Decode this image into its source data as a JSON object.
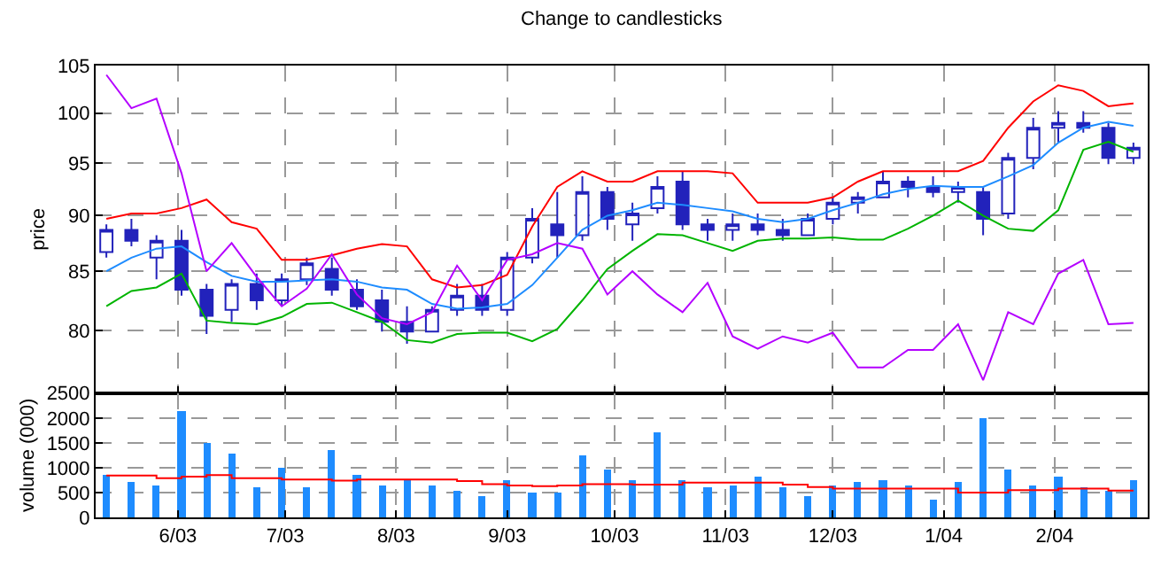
{
  "chart_data": [
    {
      "type": "candlestick",
      "title": "Change to candlesticks",
      "ylabel": "price",
      "color": "#2222bb",
      "x": [
        "2003-05-12",
        "2003-05-19",
        "2003-05-26",
        "2003-06-02",
        "2003-06-09",
        "2003-06-16",
        "2003-06-23",
        "2003-06-30",
        "2003-07-07",
        "2003-07-14",
        "2003-07-21",
        "2003-07-28",
        "2003-08-04",
        "2003-08-11",
        "2003-08-18",
        "2003-08-25",
        "2003-09-01",
        "2003-09-08",
        "2003-09-15",
        "2003-09-22",
        "2003-09-29",
        "2003-10-06",
        "2003-10-13",
        "2003-10-20",
        "2003-10-27",
        "2003-11-03",
        "2003-11-10",
        "2003-11-17",
        "2003-11-24",
        "2003-12-01",
        "2003-12-08",
        "2003-12-15",
        "2003-12-22",
        "2003-12-29",
        "2004-01-05",
        "2004-01-12",
        "2004-01-19",
        "2004-01-26",
        "2004-02-02",
        "2004-02-09",
        "2004-02-16",
        "2004-02-23"
      ],
      "ohlc": [
        [
          86.7,
          89.2,
          86.2,
          88.7
        ],
        [
          88.7,
          89.7,
          87.2,
          87.7
        ],
        [
          86.2,
          88.2,
          84.3,
          87.7
        ],
        [
          87.7,
          88.7,
          82.9,
          83.4
        ],
        [
          83.4,
          83.9,
          79.7,
          81.2
        ],
        [
          81.7,
          84.3,
          80.7,
          83.9
        ],
        [
          83.9,
          84.8,
          81.7,
          82.5
        ],
        [
          82.5,
          84.8,
          82,
          84.3
        ],
        [
          84.3,
          86.2,
          83.8,
          85.7
        ],
        [
          85.2,
          86.2,
          82.9,
          83.4
        ],
        [
          83.4,
          84.3,
          81.7,
          82
        ],
        [
          82.5,
          83.4,
          79.9,
          80.7
        ],
        [
          80.7,
          82,
          78.9,
          79.9
        ],
        [
          79.9,
          82,
          79.9,
          81.7
        ],
        [
          81.7,
          83.9,
          81.2,
          82.9
        ],
        [
          82.9,
          83.9,
          81.2,
          81.7
        ],
        [
          81.7,
          86.7,
          81.2,
          86.2
        ],
        [
          86.2,
          90.7,
          85.7,
          89.7
        ],
        [
          89.2,
          92.2,
          86.2,
          88.2
        ],
        [
          88.2,
          93.7,
          87.7,
          92.2
        ],
        [
          92.2,
          92.7,
          88.7,
          89.7
        ],
        [
          89.2,
          91.2,
          87.7,
          90.2
        ],
        [
          90.7,
          93.7,
          90.2,
          92.7
        ],
        [
          93.2,
          94.2,
          88.7,
          89.2
        ],
        [
          89.2,
          89.7,
          87.7,
          88.7
        ],
        [
          88.7,
          90.2,
          87.7,
          89.2
        ],
        [
          89.2,
          90.2,
          88.2,
          88.7
        ],
        [
          88.7,
          89.7,
          87.7,
          88.2
        ],
        [
          88.2,
          90.2,
          88.2,
          89.7
        ],
        [
          89.7,
          91.7,
          89.2,
          91.2
        ],
        [
          91.2,
          92.2,
          90.2,
          91.7
        ],
        [
          91.7,
          94.2,
          91.7,
          93.2
        ],
        [
          93.2,
          93.7,
          91.7,
          92.7
        ],
        [
          92.7,
          93.7,
          91.7,
          92.2
        ],
        [
          92.2,
          93.2,
          91.2,
          92.7
        ],
        [
          92.2,
          92.7,
          88.2,
          89.7
        ],
        [
          90.2,
          96,
          89.7,
          95.5
        ],
        [
          95.5,
          99.5,
          94.4,
          98.5
        ],
        [
          98.5,
          100.2,
          97,
          99
        ],
        [
          99,
          100.2,
          98,
          98.5
        ],
        [
          98.5,
          99,
          94.9,
          95.5
        ],
        [
          95.5,
          97,
          94.9,
          96.5
        ]
      ],
      "series": [
        {
          "type": "line",
          "color": "#ff0000",
          "values": [
            89.7,
            90.2,
            90.2,
            90.7,
            91.5,
            89.4,
            88.8,
            86,
            86,
            86.4,
            87,
            87.4,
            87.2,
            84.3,
            83.6,
            83.8,
            84.7,
            89,
            92.7,
            94.2,
            93.2,
            93.2,
            94.2,
            94.2,
            94.2,
            94,
            91.2,
            91.2,
            91.2,
            91.7,
            93.2,
            94.2,
            94.2,
            94.2,
            94.2,
            95.2,
            98.5,
            101.2,
            102.9,
            102.3,
            100.7,
            101
          ]
        },
        {
          "type": "line",
          "color": "#1e8cff",
          "values": [
            85,
            86.2,
            87,
            87.2,
            85.8,
            84.6,
            84.1,
            84.1,
            84.2,
            84.3,
            84.1,
            83.6,
            83.4,
            82.2,
            81.8,
            81.9,
            82.2,
            83.8,
            86.2,
            88.7,
            90,
            90.5,
            91.2,
            91,
            90.7,
            90.4,
            89.7,
            89.4,
            89.7,
            90.5,
            91.2,
            92,
            92.5,
            92.8,
            92.7,
            92.7,
            93.7,
            94.8,
            97,
            98.5,
            99.1,
            98.7
          ]
        },
        {
          "type": "line",
          "color": "#00b400",
          "values": [
            82,
            83.3,
            83.6,
            84.8,
            80.8,
            80.6,
            80.5,
            81.1,
            82.2,
            82.3,
            81.5,
            80.7,
            79.2,
            79,
            79.7,
            79.8,
            79.8,
            79.1,
            80.1,
            82.5,
            85.2,
            86.8,
            88.3,
            88.2,
            87.5,
            86.8,
            87.7,
            87.9,
            87.9,
            88,
            87.8,
            87.8,
            88.8,
            90,
            91.4,
            90,
            88.8,
            88.6,
            90.5,
            96.3,
            97.1,
            96.1
          ]
        },
        {
          "type": "line",
          "color": "#b400ff",
          "values": [
            104,
            100.5,
            101.5,
            94,
            85,
            87.5,
            84.5,
            82,
            83.5,
            86.5,
            83,
            81,
            80.5,
            81.5,
            85.5,
            82.5,
            86,
            86.5,
            87.5,
            87,
            83,
            85,
            83,
            81.5,
            84,
            79.5,
            78.5,
            79.5,
            79,
            79.8,
            77,
            77,
            78.4,
            78.4,
            80.5,
            76,
            81.5,
            80.5,
            84.8,
            86,
            80.5,
            80.6
          ]
        }
      ],
      "xlim": [
        "2003-05-09",
        "2004-02-27"
      ],
      "xticks": [
        {
          "value": "2003-06-01",
          "label": null
        },
        {
          "value": "2003-07-01",
          "label": null
        },
        {
          "value": "2003-08-01",
          "label": null
        },
        {
          "value": "2003-09-01",
          "label": null
        },
        {
          "value": "2003-10-01",
          "label": null
        },
        {
          "value": "2003-11-01",
          "label": null
        },
        {
          "value": "2003-12-01",
          "label": null
        },
        {
          "value": "2004-01-01",
          "label": null
        },
        {
          "value": "2004-02-01",
          "label": null
        }
      ],
      "ylim": [
        75,
        105
      ],
      "yticks": [
        80,
        85,
        90,
        95,
        100,
        105
      ],
      "log": true,
      "grid": true,
      "tick_labels": "y"
    },
    {
      "type": "bar",
      "ylabel": "volume (000)",
      "x": [
        "2003-05-12",
        "2003-05-19",
        "2003-05-26",
        "2003-06-02",
        "2003-06-09",
        "2003-06-16",
        "2003-06-23",
        "2003-06-30",
        "2003-07-07",
        "2003-07-14",
        "2003-07-21",
        "2003-07-28",
        "2003-08-04",
        "2003-08-11",
        "2003-08-18",
        "2003-08-25",
        "2003-09-01",
        "2003-09-08",
        "2003-09-15",
        "2003-09-22",
        "2003-09-29",
        "2003-10-06",
        "2003-10-13",
        "2003-10-20",
        "2003-10-27",
        "2003-11-03",
        "2003-11-10",
        "2003-11-17",
        "2003-11-24",
        "2003-12-01",
        "2003-12-08",
        "2003-12-15",
        "2003-12-22",
        "2003-12-29",
        "2004-01-05",
        "2004-01-12",
        "2004-01-19",
        "2004-01-26",
        "2004-02-02",
        "2004-02-09",
        "2004-02-16",
        "2004-02-23"
      ],
      "series": [
        {
          "type": "bar",
          "color": "#1e8cff",
          "values": [
            850,
            700,
            650,
            2150,
            1500,
            1300,
            600,
            1000,
            600,
            1350,
            850,
            650,
            750,
            650,
            550,
            450,
            750,
            500,
            500,
            1250,
            950,
            750,
            1720,
            750,
            600,
            650,
            820,
            600,
            450,
            650,
            700,
            750,
            650,
            350,
            700,
            2000,
            950,
            650,
            820,
            600,
            550,
            750
          ]
        },
        {
          "type": "step",
          "color": "#ff0000",
          "values": [
            840,
            840,
            790,
            820,
            850,
            790,
            790,
            760,
            760,
            740,
            760,
            760,
            760,
            760,
            730,
            670,
            640,
            630,
            640,
            670,
            670,
            660,
            660,
            700,
            700,
            700,
            700,
            660,
            610,
            580,
            580,
            580,
            580,
            580,
            500,
            500,
            550,
            550,
            580,
            580,
            540,
            540
          ]
        }
      ],
      "xlim": [
        "2003-05-09",
        "2004-02-27"
      ],
      "xticks": [
        {
          "value": "2003-06-01",
          "label": "6/03"
        },
        {
          "value": "2003-07-01",
          "label": "7/03"
        },
        {
          "value": "2003-08-01",
          "label": "8/03"
        },
        {
          "value": "2003-09-01",
          "label": "9/03"
        },
        {
          "value": "2003-10-01",
          "label": "10/03"
        },
        {
          "value": "2003-11-01",
          "label": "11/03"
        },
        {
          "value": "2003-12-01",
          "label": "12/03"
        },
        {
          "value": "2004-01-01",
          "label": "1/04"
        },
        {
          "value": "2004-02-01",
          "label": "2/04"
        }
      ],
      "ylim": [
        0,
        2500
      ],
      "yticks": [
        0,
        500,
        1000,
        1500,
        2000,
        2500
      ],
      "grid": true
    }
  ]
}
